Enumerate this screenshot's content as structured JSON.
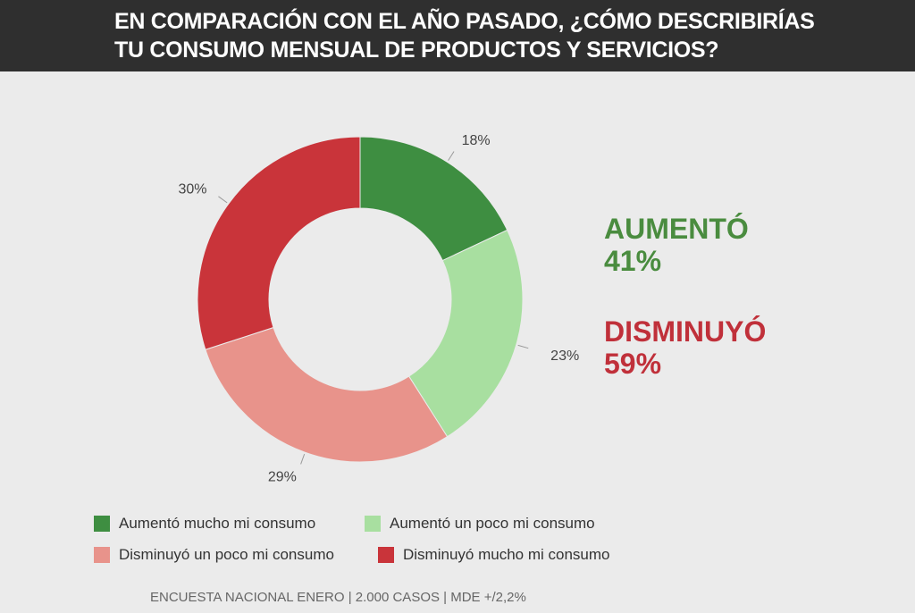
{
  "header": {
    "title_line1": "EN COMPARACIÓN CON EL AÑO PASADO, ¿CÓMO DESCRIBIRÍAS",
    "title_line2": "TU CONSUMO MENSUAL DE PRODUCTOS Y SERVICIOS?"
  },
  "summary": {
    "increase": {
      "label": "AUMENTÓ",
      "value": "41%",
      "color": "#4a8c3f"
    },
    "decrease": {
      "label": "DISMINUYÓ",
      "value": "59%",
      "color": "#c0303a"
    }
  },
  "chart_data": {
    "type": "pie",
    "donut": true,
    "slices": [
      {
        "name": "Aumentó mucho mi consumo",
        "value": 18,
        "label": "18%",
        "color": "#3e8e41"
      },
      {
        "name": "Aumentó un poco mi consumo",
        "value": 23,
        "label": "23%",
        "color": "#a8dfa0"
      },
      {
        "name": "Disminuyó un poco mi consumo",
        "value": 29,
        "label": "29%",
        "color": "#e8938b"
      },
      {
        "name": "Disminuyó mucho mi consumo",
        "value": 30,
        "label": "30%",
        "color": "#c9343a"
      }
    ],
    "legend_position": "bottom"
  },
  "footer": {
    "note": "ENCUESTA NACIONAL ENERO | 2.000 CASOS | MDE +/2,2%"
  }
}
